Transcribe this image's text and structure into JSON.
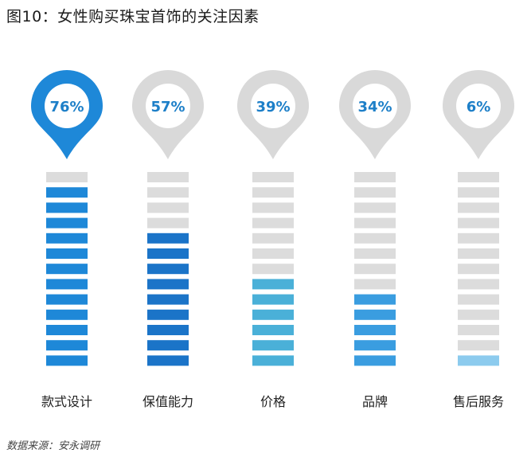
{
  "title": "图10：女性购买珠宝首饰的关注因素",
  "source": "数据来源：安永调研",
  "colors": {
    "inactive_pin": "#d9d9d9",
    "active_pin": "#1e88d8",
    "empty_bar": "#dcdcdc",
    "label_text": "#1d7fc8"
  },
  "chart_data": {
    "type": "bar",
    "title": "图10：女性购买珠宝首饰的关注因素",
    "categories": [
      "款式设计",
      "保值能力",
      "价格",
      "品牌",
      "售后服务"
    ],
    "values": [
      76,
      57,
      39,
      34,
      6
    ],
    "value_labels": [
      "76%",
      "57%",
      "39%",
      "34%",
      "6%"
    ],
    "segments_total": 13,
    "filled_segments": [
      12,
      9,
      6,
      5,
      1
    ],
    "fill_colors": [
      "#1e88d8",
      "#1b74c8",
      "#4ab0d8",
      "#3a9de0",
      "#8ccbee"
    ],
    "highlighted": "款式设计"
  }
}
